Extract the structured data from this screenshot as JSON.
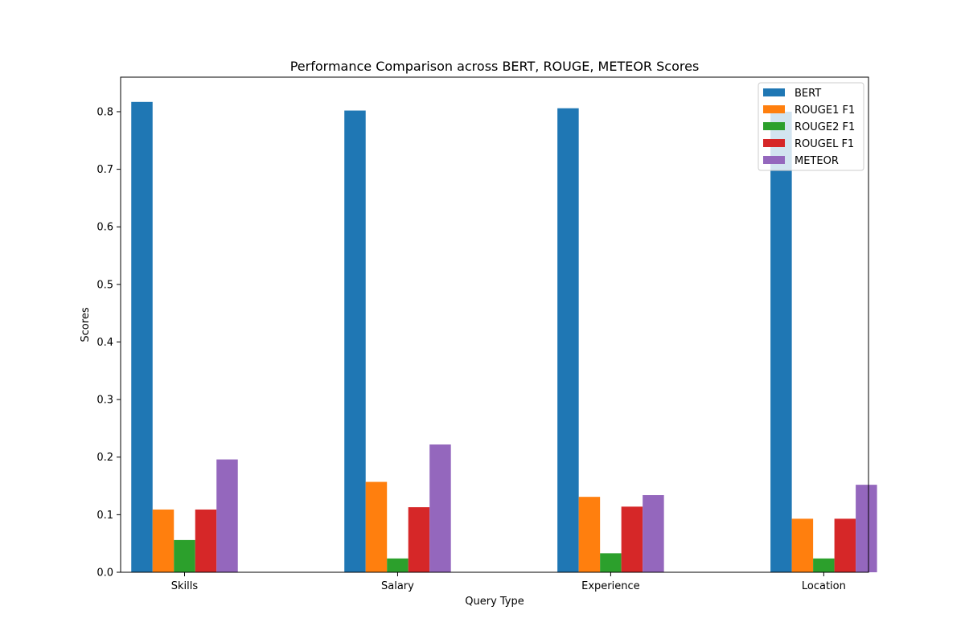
{
  "chart_data": {
    "type": "bar",
    "title": "Performance Comparison across BERT, ROUGE, METEOR Scores",
    "xlabel": "Query Type",
    "ylabel": "Scores",
    "categories": [
      "Skills",
      "Salary",
      "Experience",
      "Location"
    ],
    "ylim": [
      0,
      0.86
    ],
    "yticks": [
      "0.0",
      "0.1",
      "0.2",
      "0.3",
      "0.4",
      "0.5",
      "0.6",
      "0.7",
      "0.8"
    ],
    "grid": false,
    "legend_position": "top-right",
    "series": [
      {
        "name": "BERT",
        "color": "#1f77b4",
        "values": [
          0.817,
          0.802,
          0.806,
          0.8
        ]
      },
      {
        "name": "ROUGE1 F1",
        "color": "#ff7f0e",
        "values": [
          0.109,
          0.157,
          0.131,
          0.093
        ]
      },
      {
        "name": "ROUGE2 F1",
        "color": "#2ca02c",
        "values": [
          0.056,
          0.024,
          0.033,
          0.024
        ]
      },
      {
        "name": "ROUGEL F1",
        "color": "#d62728",
        "values": [
          0.109,
          0.113,
          0.114,
          0.093
        ]
      },
      {
        "name": "METEOR",
        "color": "#9467bd",
        "values": [
          0.196,
          0.222,
          0.134,
          0.152
        ]
      }
    ]
  }
}
